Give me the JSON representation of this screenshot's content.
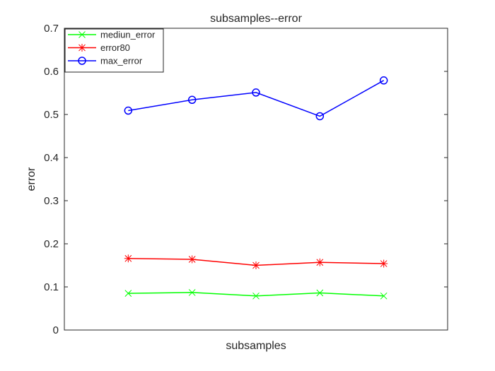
{
  "chart_data": {
    "type": "line",
    "title": "subsamples--error",
    "xlabel": "subsamples",
    "ylabel": "error",
    "x": [
      1,
      2,
      3,
      4,
      5
    ],
    "xlim": [
      0,
      6
    ],
    "ylim": [
      0,
      0.7
    ],
    "yticks": [
      "0",
      "0.1",
      "0.2",
      "0.3",
      "0.4",
      "0.5",
      "0.6",
      "0.7"
    ],
    "grid": false,
    "legend_position": "top-left",
    "series": [
      {
        "name": "mediun_error",
        "color": "#00ff00",
        "marker": "x",
        "values": [
          0.085,
          0.087,
          0.079,
          0.086,
          0.079
        ]
      },
      {
        "name": "error80",
        "color": "#ff0000",
        "marker": "asterisk",
        "values": [
          0.166,
          0.164,
          0.15,
          0.157,
          0.154
        ]
      },
      {
        "name": "max_error",
        "color": "#0000ff",
        "marker": "circle",
        "values": [
          0.509,
          0.534,
          0.551,
          0.496,
          0.579
        ]
      }
    ]
  }
}
